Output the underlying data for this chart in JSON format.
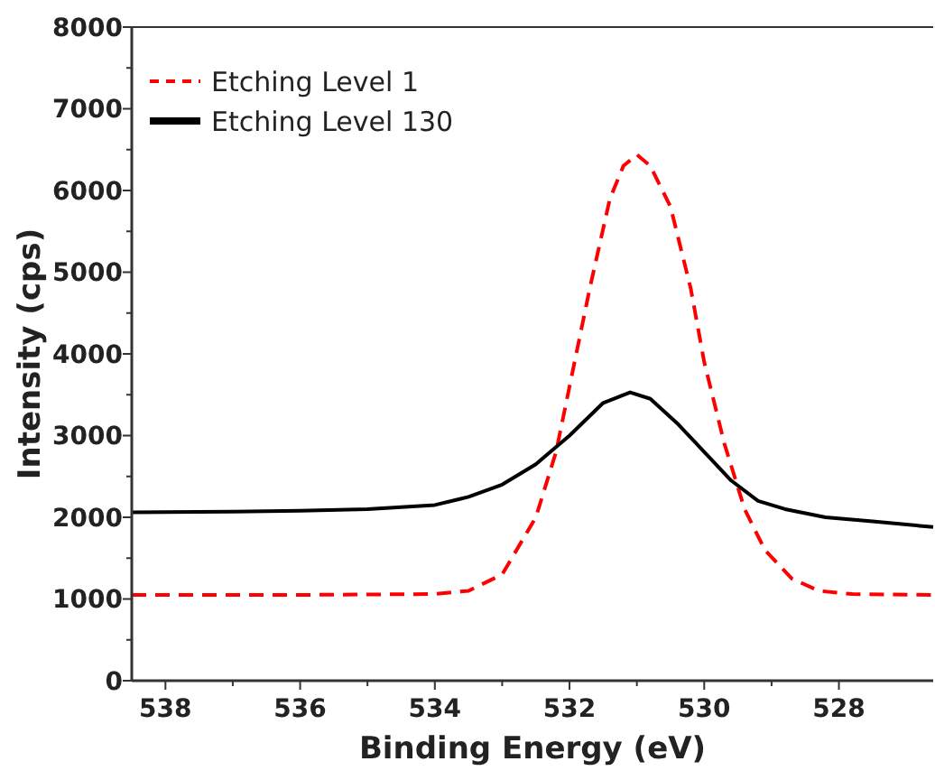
{
  "chart_data": {
    "type": "line",
    "xlabel": "Binding Energy (eV)",
    "ylabel": "Intensity (cps)",
    "xlim": [
      538.5,
      526.6
    ],
    "xticks": [
      538,
      536,
      534,
      532,
      530,
      528
    ],
    "ylim": [
      0,
      8000
    ],
    "yticks": [
      0,
      1000,
      2000,
      3000,
      4000,
      5000,
      6000,
      7000,
      8000
    ],
    "legend": "top left",
    "grid": false,
    "series": [
      {
        "name": "Etching Level 1",
        "color": "#ff0000",
        "line_style": "dashed",
        "x": [
          538.5,
          536,
          534,
          533.5,
          533,
          532.5,
          532.2,
          532,
          531.7,
          531.4,
          531.2,
          531.0,
          530.8,
          530.5,
          530.2,
          530,
          529.7,
          529.4,
          529.1,
          528.7,
          528.3,
          527.8,
          526.6
        ],
        "values": [
          1050,
          1050,
          1060,
          1100,
          1300,
          2000,
          2800,
          3600,
          4800,
          5900,
          6300,
          6440,
          6300,
          5800,
          4800,
          3900,
          2900,
          2100,
          1600,
          1250,
          1100,
          1060,
          1050
        ]
      },
      {
        "name": "Etching Level 130",
        "color": "#000000",
        "line_style": "solid",
        "x": [
          538.5,
          537,
          536,
          535,
          534,
          533.5,
          533,
          532.5,
          532,
          531.5,
          531.1,
          530.8,
          530.4,
          530,
          529.6,
          529.2,
          528.8,
          528.2,
          527.5,
          526.6
        ],
        "values": [
          2060,
          2070,
          2080,
          2100,
          2150,
          2250,
          2400,
          2650,
          3000,
          3400,
          3530,
          3450,
          3150,
          2800,
          2450,
          2200,
          2100,
          2000,
          1950,
          1880
        ]
      }
    ]
  }
}
